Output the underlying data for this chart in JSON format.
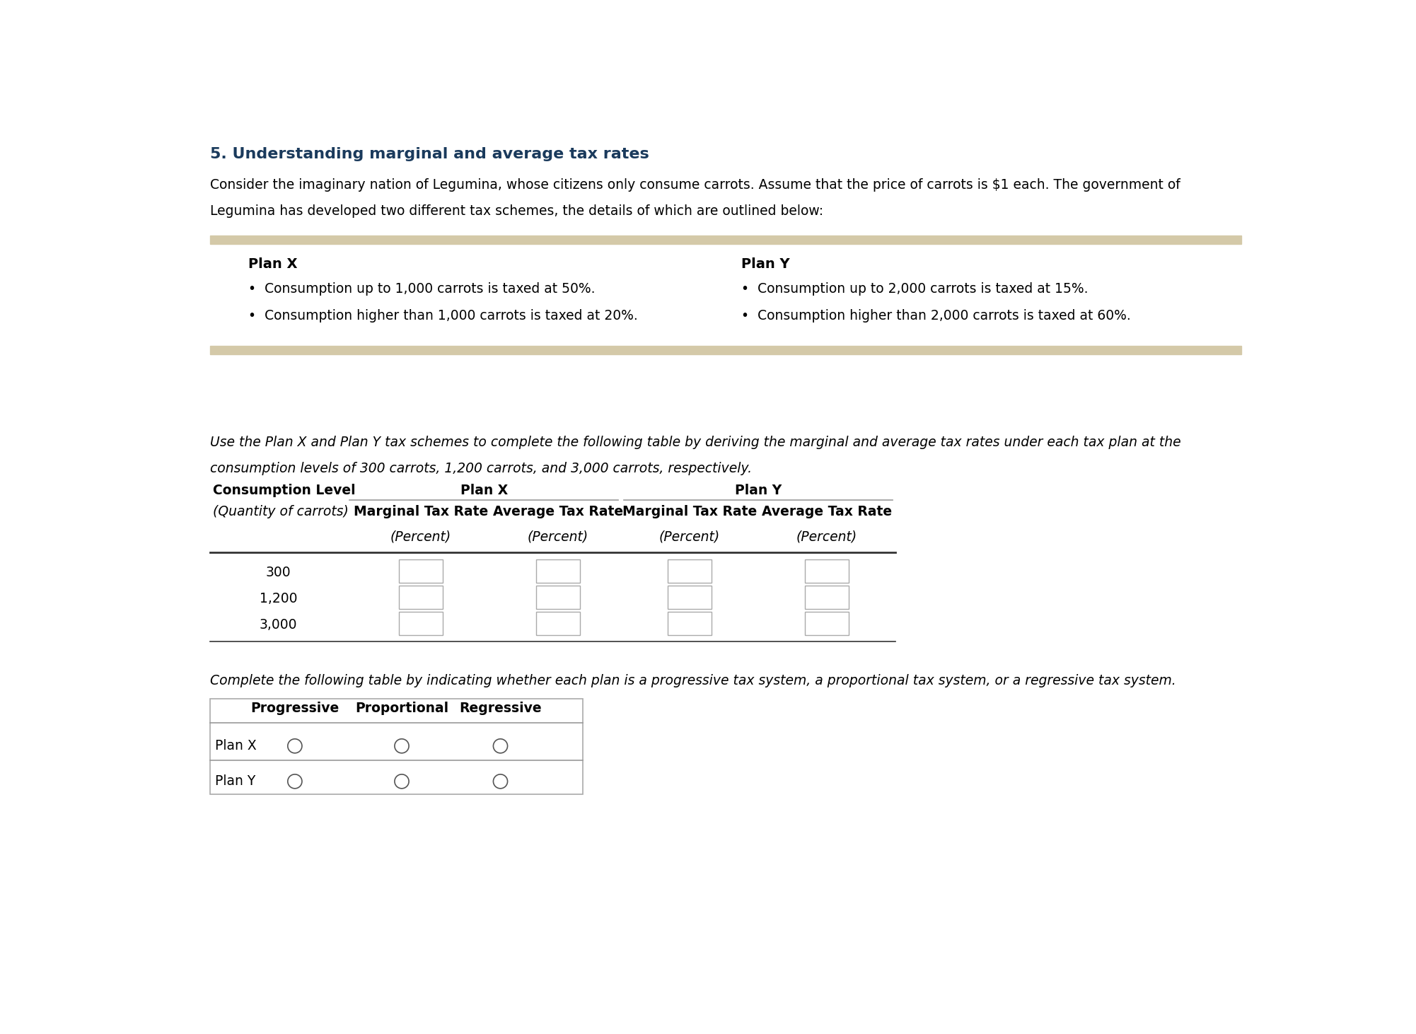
{
  "title": "5. Understanding marginal and average tax rates",
  "title_color": "#1a3a5c",
  "body_text1": "Consider the imaginary nation of Legumina, whose citizens only consume carrots. Assume that the price of carrots is $1 each. The government of",
  "body_text2": "Legumina has developed two different tax schemes, the details of which are outlined below:",
  "plan_box_color": "#d4c9a8",
  "plan_x_title": "Plan X",
  "plan_y_title": "Plan Y",
  "plan_x_bullet1": "Consumption up to 1,000 carrots is taxed at 50%.",
  "plan_x_bullet2": "Consumption higher than 1,000 carrots is taxed at 20%.",
  "plan_y_bullet1": "Consumption up to 2,000 carrots is taxed at 15%.",
  "plan_y_bullet2": "Consumption higher than 2,000 carrots is taxed at 60%.",
  "instruction_text1": "Use the Plan X and Plan Y tax schemes to complete the following table by deriving the marginal and average tax rates under each tax plan at the",
  "instruction_text2": "consumption levels of 300 carrots, 1,200 carrots, and 3,000 carrots, respectively.",
  "table1_rows": [
    "300",
    "1,200",
    "3,000"
  ],
  "instruction2": "Complete the following table by indicating whether each plan is a progressive tax system, a proportional tax system, or a regressive tax system.",
  "bg_color": "#ffffff",
  "text_color": "#000000",
  "box_border_color": "#aaaaaa",
  "line_color": "#999999",
  "thick_line_color": "#333333"
}
